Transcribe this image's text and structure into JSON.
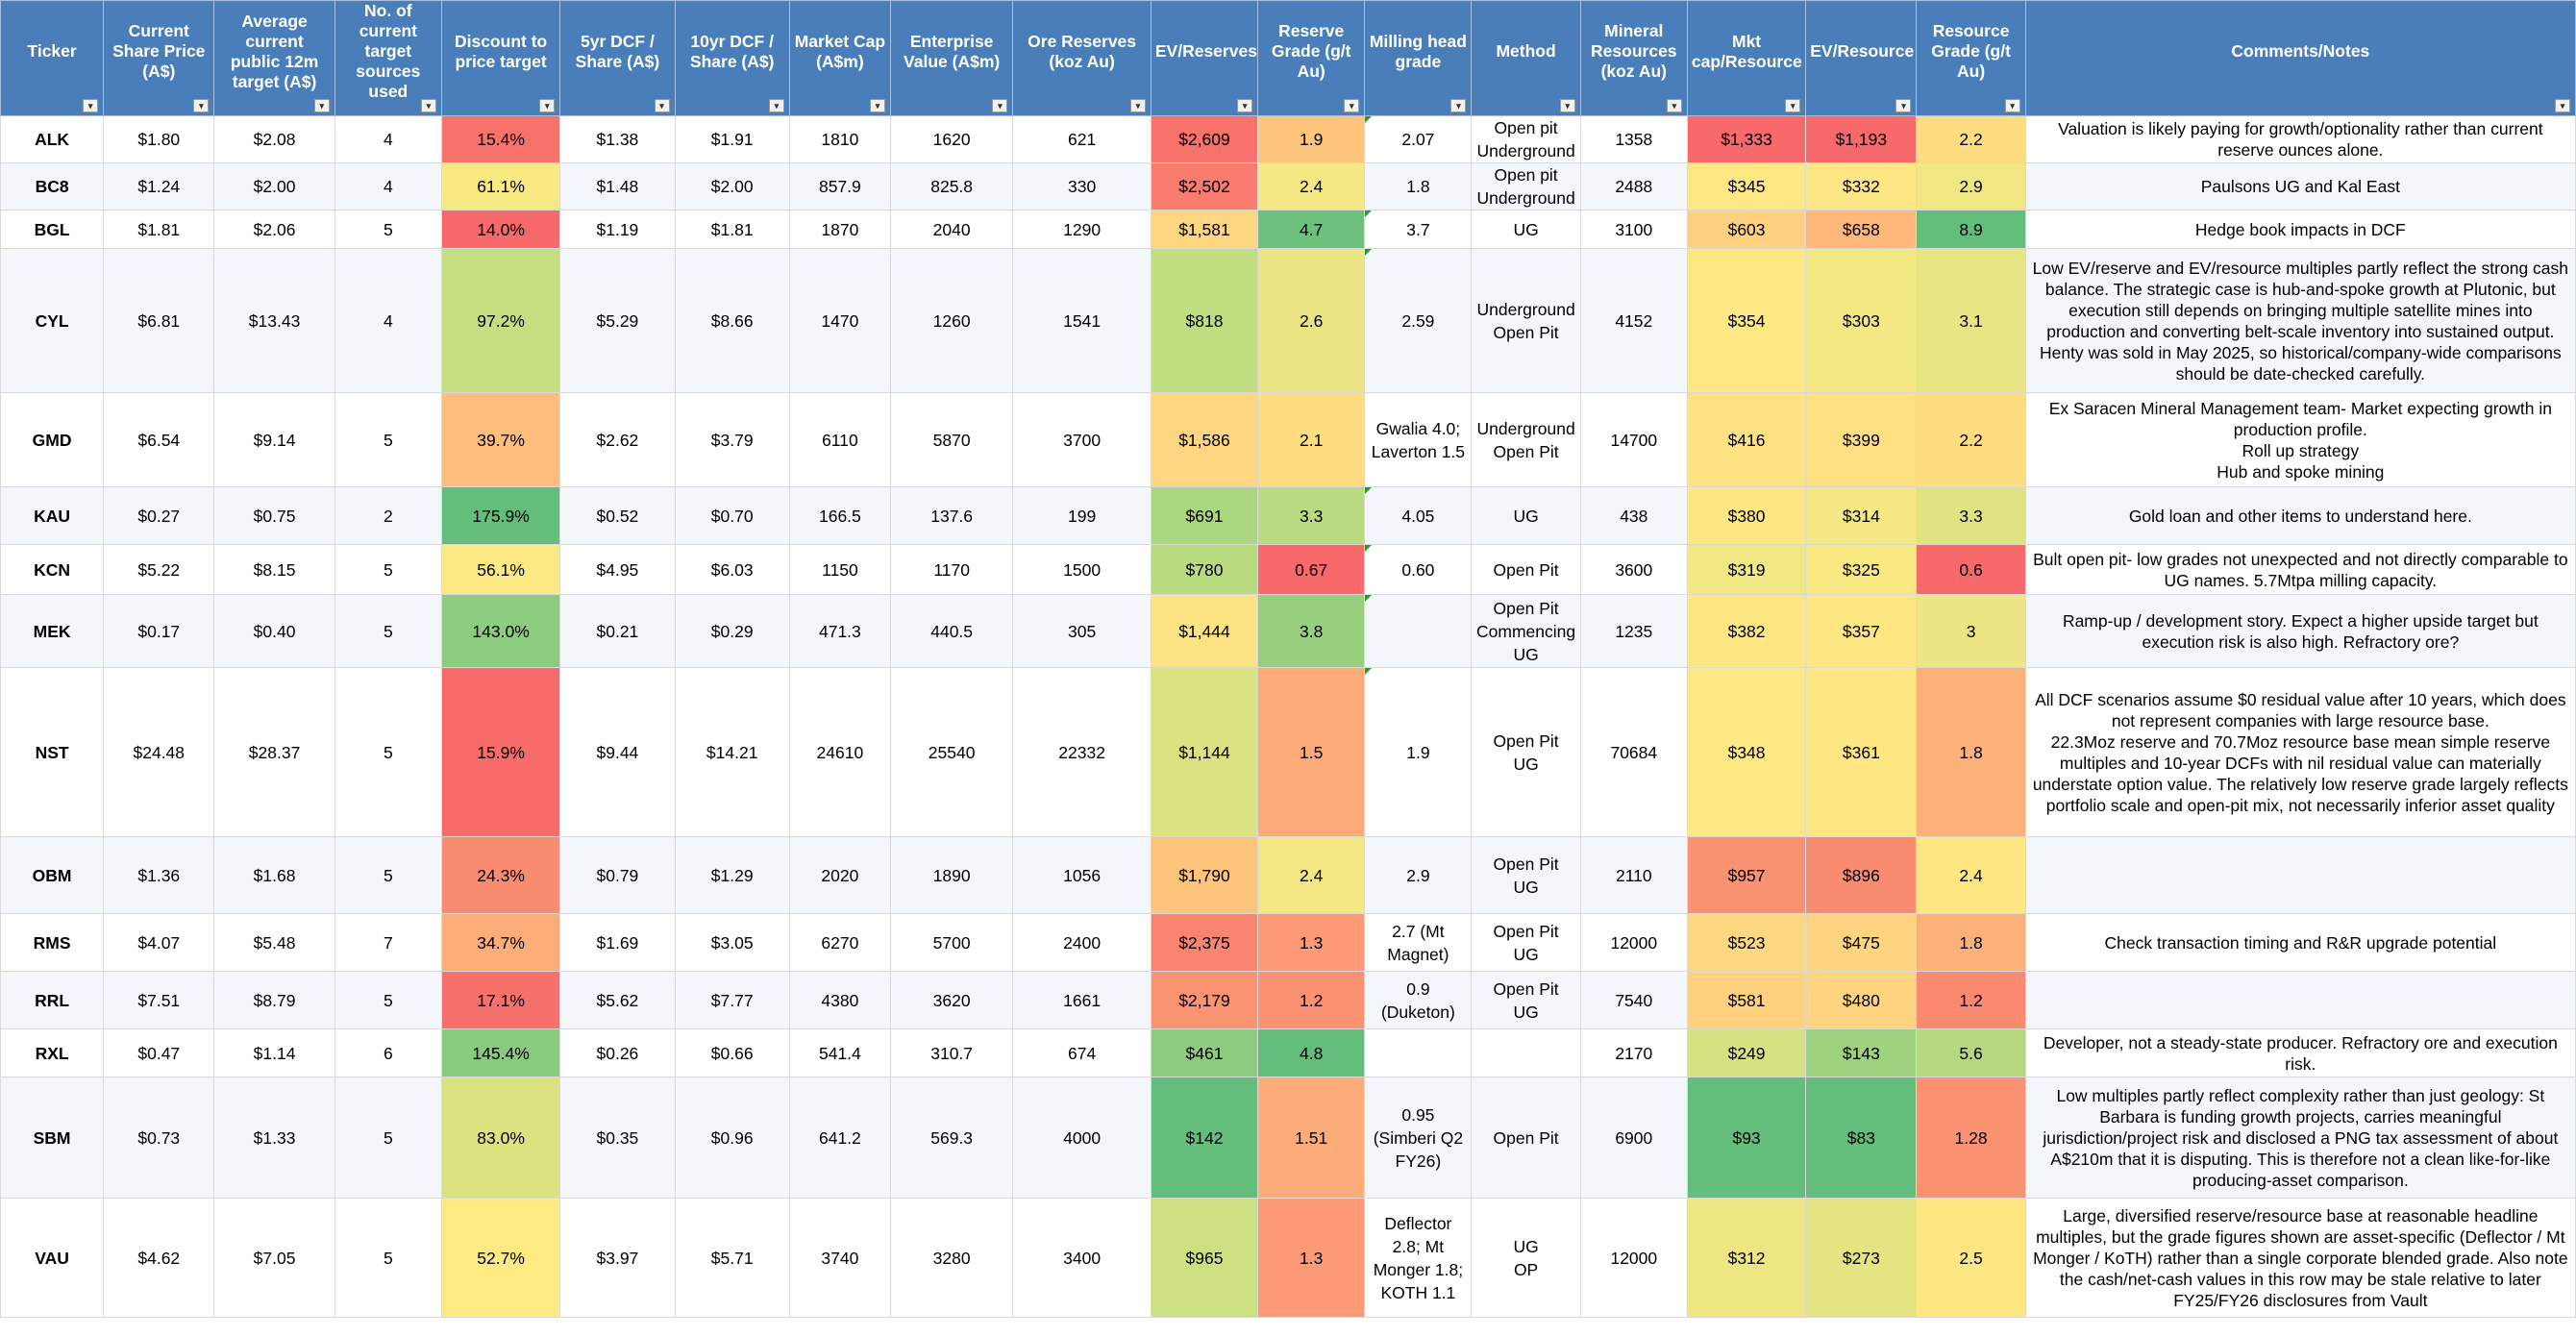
{
  "headers": [
    "Ticker",
    "Current Share Price (A$)",
    "Average current public 12m target (A$)",
    "No. of current target sources used",
    "Discount to price target",
    "5yr DCF / Share (A$)",
    "10yr DCF / Share (A$)",
    "Market Cap (A$m)",
    "Enterprise Value (A$m)",
    "Ore Reserves (koz Au)",
    "EV/Reserves",
    "Reserve Grade (g/t Au)",
    "Milling head grade",
    "Method",
    "Mineral Resources (koz Au)",
    "Mkt cap/Resource",
    "EV/Resource",
    "Resource Grade (g/t Au)",
    "Comments/Notes"
  ],
  "heat_colors": {
    "green": "#63be7b",
    "yellow": "#ffeb84",
    "red": "#f8696b"
  },
  "rows": [
    {
      "ticker": "ALK",
      "price": "$1.80",
      "target": "$2.08",
      "sources": "4",
      "discount": "15.4%",
      "dcf5": "$1.38",
      "dcf10": "$1.91",
      "mcap": "1810",
      "ev": "1620",
      "reserves": "621",
      "ev_res": "$2,609",
      "res_grade": "1.9",
      "mill": "2.07",
      "method": "Open pit\nUnderground",
      "resources": "1358",
      "mcap_resource": "$1,333",
      "ev_resource": "$1,193",
      "resource_grade": "2.2",
      "note": "Valuation is likely paying for growth/optionality rather than current reserve ounces alone.",
      "bg": {
        "discount": "#f8726c",
        "ev_res": "#f8716b",
        "res_grade": "#fdc47c",
        "mcap_resource": "#f8696b",
        "ev_resource": "#f8696b",
        "resource_grade": "#fedd81"
      }
    },
    {
      "ticker": "BC8",
      "price": "$1.24",
      "target": "$2.00",
      "sources": "4",
      "discount": "61.1%",
      "dcf5": "$1.48",
      "dcf10": "$2.00",
      "mcap": "857.9",
      "ev": "825.8",
      "reserves": "330",
      "ev_res": "$2,502",
      "res_grade": "2.4",
      "mill": "1.8",
      "method": "Open pit\nUnderground",
      "resources": "2488",
      "mcap_resource": "$345",
      "ev_resource": "$332",
      "resource_grade": "2.9",
      "note": "Paulsons UG and Kal East",
      "bg": {
        "discount": "#f8e983",
        "ev_res": "#f97b6e",
        "res_grade": "#f4e884",
        "mcap_resource": "#fee883",
        "ev_resource": "#fde683",
        "resource_grade": "#f0e784"
      }
    },
    {
      "ticker": "BGL",
      "price": "$1.81",
      "target": "$2.06",
      "sources": "5",
      "discount": "14.0%",
      "dcf5": "$1.19",
      "dcf10": "$1.81",
      "mcap": "1870",
      "ev": "2040",
      "reserves": "1290",
      "ev_res": "$1,581",
      "res_grade": "4.7",
      "mill": "3.7",
      "method": "UG",
      "resources": "3100",
      "mcap_resource": "$603",
      "ev_resource": "$658",
      "resource_grade": "8.9",
      "note": "Hedge book impacts in DCF",
      "bg": {
        "discount": "#f8696b",
        "ev_res": "#fed580",
        "res_grade": "#6dc17c",
        "mcap_resource": "#fed07f",
        "ev_resource": "#fdb87a",
        "resource_grade": "#63be7b"
      }
    },
    {
      "ticker": "CYL",
      "price": "$6.81",
      "target": "$13.43",
      "sources": "4",
      "discount": "97.2%",
      "dcf5": "$5.29",
      "dcf10": "$8.66",
      "mcap": "1470",
      "ev": "1260",
      "reserves": "1541",
      "ev_res": "$818",
      "res_grade": "2.6",
      "mill": "2.59",
      "method": "Underground\nOpen Pit",
      "resources": "4152",
      "mcap_resource": "$354",
      "ev_resource": "$303",
      "resource_grade": "3.1",
      "note": "Low EV/reserve and EV/resource multiples partly reflect the strong cash balance. The strategic case is hub-and-spoke growth at Plutonic, but execution still depends on bringing multiple satellite mines into production and converting belt-scale inventory into sustained output. Henty was sold in May 2025, so historical/company-wide comparisons should be date-checked carefully.",
      "bg": {
        "discount": "#c5df80",
        "ev_res": "#c0dd80",
        "res_grade": "#ebe683",
        "mcap_resource": "#fee883",
        "ev_resource": "#f3e884",
        "resource_grade": "#e8e583"
      }
    },
    {
      "ticker": "GMD",
      "price": "$6.54",
      "target": "$9.14",
      "sources": "5",
      "discount": "39.7%",
      "dcf5": "$2.62",
      "dcf10": "$3.79",
      "mcap": "6110",
      "ev": "5870",
      "reserves": "3700",
      "ev_res": "$1,586",
      "res_grade": "2.1",
      "mill": "Gwalia 4.0;\nLaverton 1.5",
      "method": "Underground\nOpen Pit",
      "resources": "14700",
      "mcap_resource": "$416",
      "ev_resource": "$399",
      "resource_grade": "2.2",
      "note": "Ex Saracen Mineral Management team- Market expecting growth in production profile.\nRoll up strategy\nHub and spoke mining",
      "bg": {
        "discount": "#fdbd7b",
        "ev_res": "#fed580",
        "res_grade": "#fedc81",
        "mcap_resource": "#fee282",
        "ev_resource": "#fedf81",
        "resource_grade": "#fedd81"
      }
    },
    {
      "ticker": "KAU",
      "price": "$0.27",
      "target": "$0.75",
      "sources": "2",
      "discount": "175.9%",
      "dcf5": "$0.52",
      "dcf10": "$0.70",
      "mcap": "166.5",
      "ev": "137.6",
      "reserves": "199",
      "ev_res": "$691",
      "res_grade": "3.3",
      "mill": "4.05",
      "method": "UG",
      "resources": "438",
      "mcap_resource": "$380",
      "ev_resource": "$314",
      "resource_grade": "3.3",
      "note": "Gold loan and other items to understand here.",
      "bg": {
        "discount": "#63be7b",
        "ev_res": "#a9d67f",
        "res_grade": "#b9da80",
        "mcap_resource": "#fee783",
        "ev_resource": "#f5e884",
        "resource_grade": "#e0e382"
      }
    },
    {
      "ticker": "KCN",
      "price": "$5.22",
      "target": "$8.15",
      "sources": "5",
      "discount": "56.1%",
      "dcf5": "$4.95",
      "dcf10": "$6.03",
      "mcap": "1150",
      "ev": "1170",
      "reserves": "1500",
      "ev_res": "$780",
      "res_grade": "0.67",
      "mill": "0.60",
      "method": "Open Pit",
      "resources": "3600",
      "mcap_resource": "$319",
      "ev_resource": "$325",
      "resource_grade": "0.6",
      "note": "Bult open pit- low grades not unexpected and not directly comparable to UG names. 5.7Mtpa milling capacity.",
      "bg": {
        "discount": "#fde983",
        "ev_res": "#b8db80",
        "res_grade": "#f8696b",
        "mcap_resource": "#f1e784",
        "ev_resource": "#fae983",
        "resource_grade": "#f8696b"
      }
    },
    {
      "ticker": "MEK",
      "price": "$0.17",
      "target": "$0.40",
      "sources": "5",
      "discount": "143.0%",
      "dcf5": "$0.21",
      "dcf10": "$0.29",
      "mcap": "471.3",
      "ev": "440.5",
      "reserves": "305",
      "ev_res": "$1,444",
      "res_grade": "3.8",
      "mill": "",
      "method": "Open Pit\nCommencing\nUG",
      "resources": "1235",
      "mcap_resource": "$382",
      "ev_resource": "$357",
      "resource_grade": "3",
      "note": "Ramp-up / development story. Expect a higher upside target but execution risk is also high. Refractory ore?",
      "bg": {
        "discount": "#8ccc7e",
        "ev_res": "#fee383",
        "res_grade": "#97cf7e",
        "mcap_resource": "#fee783",
        "ev_resource": "#fee683",
        "resource_grade": "#ebe683"
      }
    },
    {
      "ticker": "NST",
      "price": "$24.48",
      "target": "$28.37",
      "sources": "5",
      "discount": "15.9%",
      "dcf5": "$9.44",
      "dcf10": "$14.21",
      "mcap": "24610",
      "ev": "25540",
      "reserves": "22332",
      "ev_res": "$1,144",
      "res_grade": "1.5",
      "mill": "1.9",
      "method": "Open Pit\nUG",
      "resources": "70684",
      "mcap_resource": "$348",
      "ev_resource": "$361",
      "resource_grade": "1.8",
      "note": "All DCF scenarios assume $0 residual value after 10 years,  which does not represent companies with large resource base.\n22.3Moz reserve and 70.7Moz resource base mean simple reserve multiples and 10-year DCFs with nil residual value can materially understate option value. The relatively low reserve grade largely reflects portfolio scale and open-pit mix, not necessarily inferior asset quality",
      "bg": {
        "discount": "#f86b6b",
        "ev_res": "#dde281",
        "res_grade": "#fcab78",
        "mcap_resource": "#fee883",
        "ev_resource": "#fee683",
        "resource_grade": "#fcb07a"
      }
    },
    {
      "ticker": "OBM",
      "price": "$1.36",
      "target": "$1.68",
      "sources": "5",
      "discount": "24.3%",
      "dcf5": "$0.79",
      "dcf10": "$1.29",
      "mcap": "2020",
      "ev": "1890",
      "reserves": "1056",
      "ev_res": "$1,790",
      "res_grade": "2.4",
      "mill": "2.9",
      "method": "Open Pit\nUG",
      "resources": "2110",
      "mcap_resource": "$957",
      "ev_resource": "$896",
      "resource_grade": "2.4",
      "note": "",
      "bg": {
        "discount": "#f98b70",
        "ev_res": "#fdc47c",
        "res_grade": "#f4e884",
        "mcap_resource": "#f99271",
        "ev_resource": "#f98b70",
        "resource_grade": "#fee683"
      }
    },
    {
      "ticker": "RMS",
      "price": "$4.07",
      "target": "$5.48",
      "sources": "7",
      "discount": "34.7%",
      "dcf5": "$1.69",
      "dcf10": "$3.05",
      "mcap": "6270",
      "ev": "5700",
      "reserves": "2400",
      "ev_res": "$2,375",
      "res_grade": "1.3",
      "mill": "2.7 (Mt\nMagnet)",
      "method": "Open Pit\nUG",
      "resources": "12000",
      "mcap_resource": "$523",
      "ev_resource": "$475",
      "resource_grade": "1.8",
      "note": "Check transaction timing and R&R upgrade potential",
      "bg": {
        "discount": "#fcad78",
        "ev_res": "#f98570",
        "res_grade": "#fb9a74",
        "mcap_resource": "#fed880",
        "ev_resource": "#fed480",
        "resource_grade": "#fcb07a"
      }
    },
    {
      "ticker": "RRL",
      "price": "$7.51",
      "target": "$8.79",
      "sources": "5",
      "discount": "17.1%",
      "dcf5": "$5.62",
      "dcf10": "$7.77",
      "mcap": "4380",
      "ev": "3620",
      "reserves": "1661",
      "ev_res": "$2,179",
      "res_grade": "1.2",
      "mill": "0.9\n(Duketon)",
      "method": "Open Pit\nUG",
      "resources": "7540",
      "mcap_resource": "$581",
      "ev_resource": "$480",
      "resource_grade": "1.2",
      "note": "",
      "bg": {
        "discount": "#f8706c",
        "ev_res": "#fa9372",
        "res_grade": "#fa9172",
        "mcap_resource": "#fed17f",
        "ev_resource": "#fed480",
        "resource_grade": "#f98a70"
      }
    },
    {
      "ticker": "RXL",
      "price": "$0.47",
      "target": "$1.14",
      "sources": "6",
      "discount": "145.4%",
      "dcf5": "$0.26",
      "dcf10": "$0.66",
      "mcap": "541.4",
      "ev": "310.7",
      "reserves": "674",
      "ev_res": "$461",
      "res_grade": "4.8",
      "mill": "",
      "method": "",
      "resources": "2170",
      "mcap_resource": "$249",
      "ev_resource": "$143",
      "resource_grade": "5.6",
      "note": "Developer, not a steady-state producer. Refractory ore and execution risk.",
      "bg": {
        "discount": "#88cb7e",
        "ev_res": "#8ccc7e",
        "res_grade": "#63be7b",
        "mcap_resource": "#d6e182",
        "ev_resource": "#9ed27f",
        "resource_grade": "#b6d97f"
      }
    },
    {
      "ticker": "SBM",
      "price": "$0.73",
      "target": "$1.33",
      "sources": "5",
      "discount": "83.0%",
      "dcf5": "$0.35",
      "dcf10": "$0.96",
      "mcap": "641.2",
      "ev": "569.3",
      "reserves": "4000",
      "ev_res": "$142",
      "res_grade": "1.51",
      "mill": "0.95\n(Simberi Q2\nFY26)",
      "method": "Open Pit",
      "resources": "6900",
      "mcap_resource": "$93",
      "ev_resource": "$83",
      "resource_grade": "1.28",
      "note": "Low multiples partly reflect complexity rather than just geology: St Barbara is funding growth projects, carries meaningful jurisdiction/project risk and disclosed a PNG tax assessment of about A$210m that it is disputing. This is therefore not a clean like-for-like producing-asset comparison.",
      "bg": {
        "discount": "#dde281",
        "ev_res": "#63be7b",
        "res_grade": "#fcac78",
        "mcap_resource": "#63be7b",
        "ev_resource": "#63be7b",
        "resource_grade": "#fa9272"
      }
    },
    {
      "ticker": "VAU",
      "price": "$4.62",
      "target": "$7.05",
      "sources": "5",
      "discount": "52.7%",
      "dcf5": "$3.97",
      "dcf10": "$5.71",
      "mcap": "3740",
      "ev": "3280",
      "reserves": "3400",
      "ev_res": "$965",
      "res_grade": "1.3",
      "mill": "Deflector\n2.8; Mt\nMonger 1.8;\nKOTH 1.1",
      "method": "UG\nOP",
      "resources": "12000",
      "mcap_resource": "$312",
      "ev_resource": "$273",
      "resource_grade": "2.5",
      "note": "Large, diversified reserve/resource base at reasonable headline multiples, but the grade figures shown are asset-specific (Deflector / Mt Monger / KoTH) rather than a single corporate blended grade. Also note the cash/net-cash values in this row may be stale relative to later FY25/FY26 disclosures from Vault",
      "bg": {
        "discount": "#fee983",
        "ev_res": "#cde081",
        "res_grade": "#fb9a74",
        "mcap_resource": "#eee683",
        "ev_resource": "#e5e482",
        "resource_grade": "#fee683"
      }
    }
  ]
}
